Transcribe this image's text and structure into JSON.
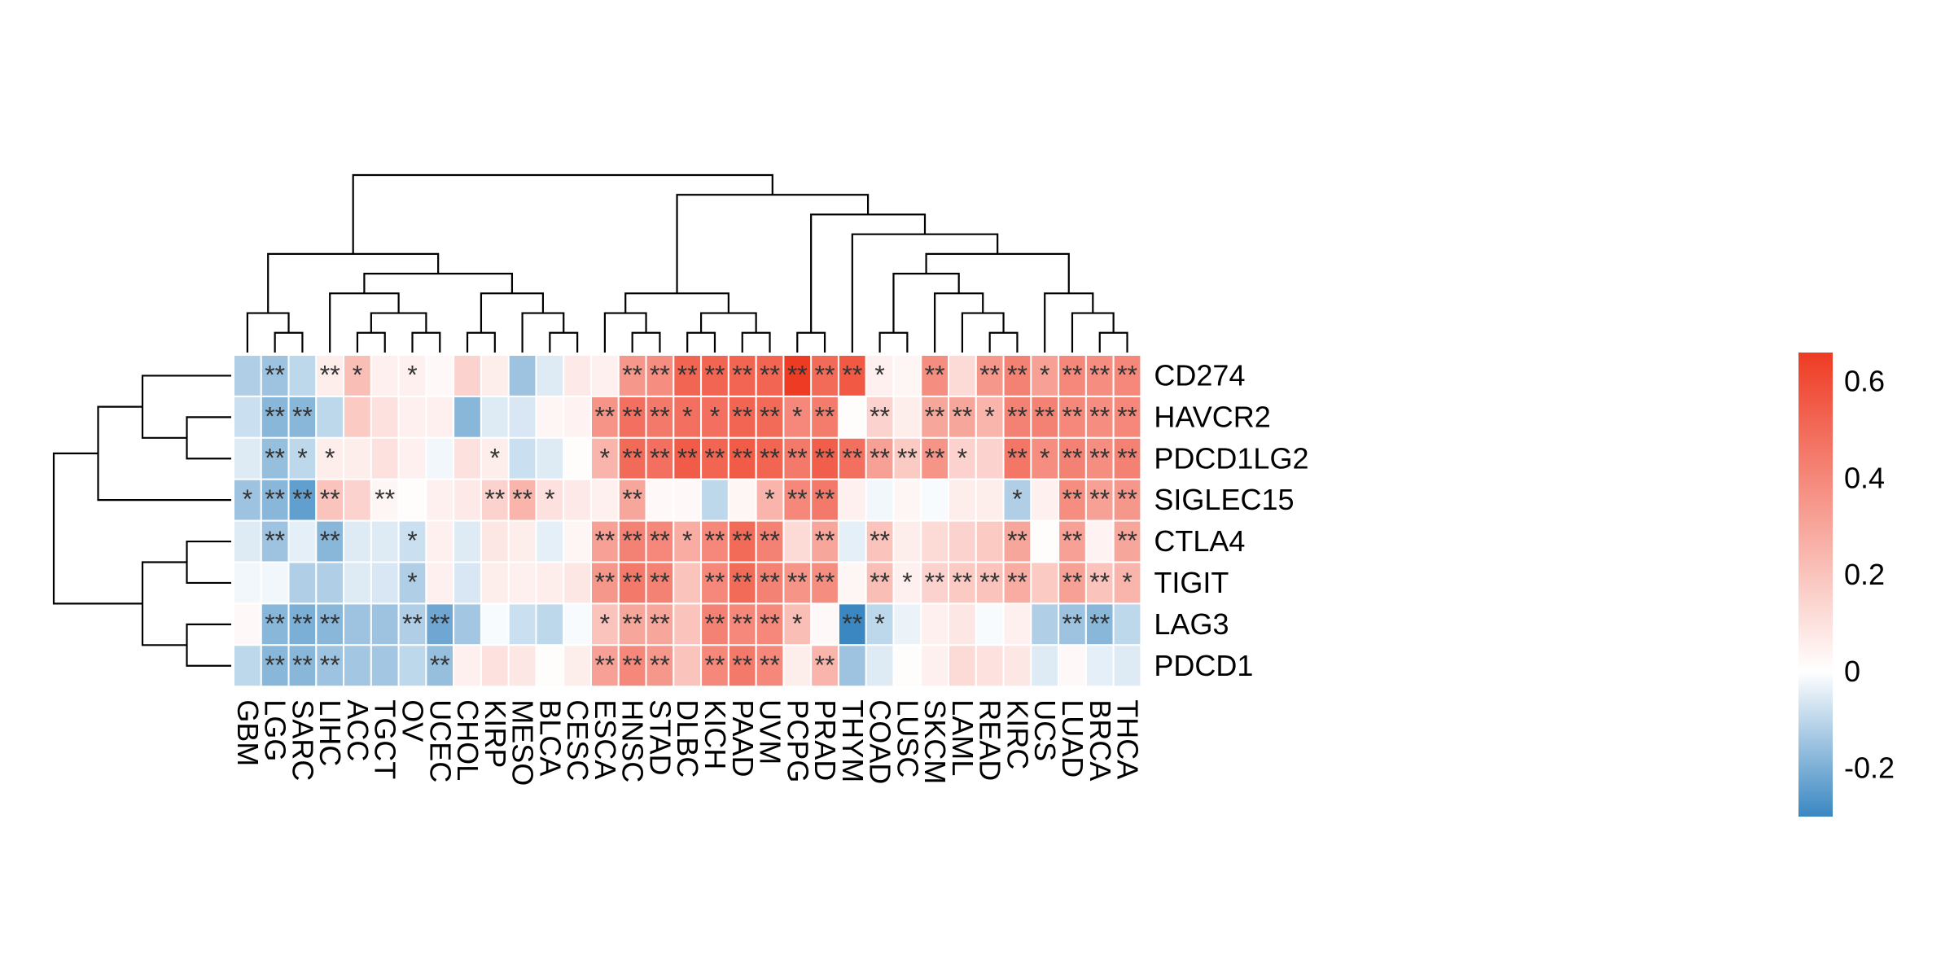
{
  "chart_data": {
    "type": "heatmap",
    "title": "",
    "rows": [
      "CD274",
      "HAVCR2",
      "PDCD1LG2",
      "SIGLEC15",
      "CTLA4",
      "TIGIT",
      "LAG3",
      "PDCD1"
    ],
    "columns": [
      "GBM",
      "LGG",
      "SARC",
      "LIHC",
      "ACC",
      "TGCT",
      "OV",
      "UCEC",
      "CHOL",
      "KIRP",
      "MESO",
      "BLCA",
      "CESC",
      "ESCA",
      "HNSC",
      "STAD",
      "DLBC",
      "KICH",
      "PAAD",
      "UVM",
      "PCPG",
      "PRAD",
      "THYM",
      "COAD",
      "LUSC",
      "SKCM",
      "LAML",
      "READ",
      "KIRC",
      "UCS",
      "LUAD",
      "BRCA",
      "THCA"
    ],
    "values": [
      [
        -0.12,
        -0.15,
        -0.1,
        0.06,
        0.22,
        0.05,
        0.05,
        0.02,
        0.15,
        0.06,
        -0.15,
        -0.05,
        0.07,
        0.05,
        0.35,
        0.38,
        0.52,
        0.52,
        0.52,
        0.52,
        0.66,
        0.5,
        0.56,
        0.05,
        0.03,
        0.38,
        0.12,
        0.35,
        0.42,
        0.32,
        0.4,
        0.38,
        0.4
      ],
      [
        -0.08,
        -0.18,
        -0.18,
        -0.1,
        0.18,
        0.1,
        0.05,
        0.05,
        -0.18,
        -0.05,
        -0.06,
        0.03,
        0.04,
        0.36,
        0.48,
        0.45,
        0.48,
        0.48,
        0.52,
        0.5,
        0.4,
        0.44,
        0.01,
        0.15,
        0.06,
        0.3,
        0.3,
        0.25,
        0.42,
        0.42,
        0.4,
        0.38,
        0.4
      ],
      [
        -0.05,
        -0.16,
        -0.1,
        0.06,
        0.06,
        0.1,
        0.05,
        -0.02,
        0.1,
        0.06,
        -0.08,
        -0.05,
        0.01,
        0.25,
        0.5,
        0.48,
        0.55,
        0.52,
        0.55,
        0.52,
        0.45,
        0.54,
        0.48,
        0.32,
        0.18,
        0.36,
        0.15,
        0.15,
        0.46,
        0.38,
        0.42,
        0.38,
        0.42
      ],
      [
        -0.15,
        -0.18,
        -0.24,
        0.2,
        0.15,
        0.03,
        0.01,
        0.05,
        0.07,
        0.15,
        0.25,
        0.1,
        0.07,
        0.05,
        0.3,
        0.02,
        0.02,
        -0.1,
        0.03,
        0.25,
        0.4,
        0.45,
        0.05,
        -0.02,
        0.03,
        -0.01,
        0.06,
        0.06,
        -0.12,
        0.05,
        0.38,
        0.32,
        0.35
      ],
      [
        -0.05,
        -0.15,
        -0.04,
        -0.18,
        -0.05,
        -0.05,
        -0.08,
        0.05,
        -0.05,
        0.08,
        0.06,
        -0.04,
        0.03,
        0.32,
        0.42,
        0.4,
        0.28,
        0.4,
        0.5,
        0.42,
        0.12,
        0.3,
        -0.04,
        0.2,
        0.06,
        0.12,
        0.15,
        0.18,
        0.3,
        0.01,
        0.32,
        0.04,
        0.3
      ],
      [
        -0.02,
        -0.02,
        -0.12,
        -0.12,
        -0.05,
        -0.06,
        -0.12,
        0.05,
        -0.06,
        0.06,
        0.05,
        0.06,
        0.08,
        0.35,
        0.45,
        0.42,
        0.2,
        0.4,
        0.5,
        0.42,
        0.36,
        0.38,
        0.03,
        0.22,
        0.05,
        0.15,
        0.18,
        0.2,
        0.28,
        0.18,
        0.32,
        0.2,
        0.25
      ],
      [
        0.02,
        -0.18,
        -0.2,
        -0.18,
        -0.15,
        -0.15,
        -0.12,
        -0.22,
        -0.14,
        -0.01,
        -0.08,
        -0.1,
        -0.01,
        0.2,
        0.3,
        0.3,
        0.2,
        0.42,
        0.4,
        0.4,
        0.22,
        0.02,
        -0.3,
        -0.1,
        -0.03,
        0.05,
        0.08,
        -0.01,
        0.05,
        -0.12,
        -0.15,
        -0.18,
        -0.1
      ],
      [
        -0.1,
        -0.18,
        -0.18,
        -0.15,
        -0.14,
        -0.14,
        -0.1,
        -0.16,
        0.05,
        0.1,
        0.08,
        0.01,
        0.06,
        0.32,
        0.4,
        0.35,
        0.2,
        0.4,
        0.45,
        0.4,
        0.06,
        0.25,
        -0.15,
        -0.05,
        0.01,
        0.05,
        0.12,
        0.1,
        0.08,
        -0.05,
        0.02,
        -0.04,
        -0.05
      ]
    ],
    "significance": [
      [
        "",
        "**",
        "",
        "**",
        "*",
        "",
        "*",
        "",
        "",
        "",
        "",
        "",
        "",
        "",
        "**",
        "**",
        "**",
        "**",
        "**",
        "**",
        "**",
        "**",
        "**",
        "*",
        "",
        "**",
        "",
        "**",
        "**",
        "*",
        "**",
        "**",
        "**"
      ],
      [
        "",
        "**",
        "**",
        "",
        "",
        "",
        "",
        "",
        "",
        "",
        "",
        "",
        "",
        "**",
        "**",
        "**",
        "*",
        "*",
        "**",
        "**",
        "*",
        "**",
        "",
        "**",
        "",
        "**",
        "**",
        "*",
        "**",
        "**",
        "**",
        "**",
        "**"
      ],
      [
        "",
        "**",
        "*",
        "*",
        "",
        "",
        "",
        "",
        "",
        "*",
        "",
        "",
        "",
        "*",
        "**",
        "**",
        "**",
        "**",
        "**",
        "**",
        "**",
        "**",
        "**",
        "**",
        "**",
        "**",
        "*",
        "",
        "**",
        "*",
        "**",
        "**",
        "**"
      ],
      [
        "*",
        "**",
        "**",
        "**",
        "",
        "**",
        "",
        "",
        "",
        "**",
        "**",
        "*",
        "",
        "",
        "**",
        "",
        "",
        "",
        "",
        "*",
        "**",
        "**",
        "",
        "",
        "",
        "",
        "",
        "",
        "*",
        "",
        "**",
        "**",
        "**"
      ],
      [
        "",
        "**",
        "",
        "**",
        "",
        "",
        "*",
        "",
        "",
        "",
        "",
        "",
        "",
        "**",
        "**",
        "**",
        "*",
        "**",
        "**",
        "**",
        "",
        "**",
        "",
        "**",
        "",
        "",
        "",
        "",
        "**",
        "",
        "**",
        "",
        "**"
      ],
      [
        "",
        "",
        "",
        "",
        "",
        "",
        "*",
        "",
        "",
        "",
        "",
        "",
        "",
        "**",
        "**",
        "**",
        "",
        "**",
        "**",
        "**",
        "**",
        "**",
        "",
        "**",
        "*",
        "**",
        "**",
        "**",
        "**",
        "",
        "**",
        "**",
        "*"
      ],
      [
        "",
        "**",
        "**",
        "**",
        "",
        "",
        "**",
        "**",
        "",
        "",
        "",
        "",
        "",
        "*",
        "**",
        "**",
        "",
        "**",
        "**",
        "**",
        "*",
        "",
        "**",
        "*",
        "",
        "",
        "",
        "",
        "",
        "",
        "**",
        "**",
        ""
      ],
      [
        "",
        "**",
        "**",
        "**",
        "",
        "",
        "",
        "**",
        "",
        "",
        "",
        "",
        "",
        "**",
        "**",
        "**",
        "",
        "**",
        "**",
        "**",
        "",
        "**",
        "",
        "",
        "",
        "",
        "",
        "",
        "",
        "",
        "",
        "",
        ""
      ]
    ],
    "color_scale": {
      "min": -0.3,
      "max": 0.66,
      "low_color": "#3a87c2",
      "mid_color": "#ffffff",
      "high_color": "#ee3b24",
      "ticks": [
        -0.2,
        0,
        0.2,
        0.4,
        0.6
      ],
      "tick_labels": [
        "-0.2",
        "0",
        "0.2",
        "0.4",
        "0.6"
      ]
    },
    "row_dendrogram": [
      [
        "lag3_pdcd1",
        6,
        7
      ],
      [
        "ctla4_tigit",
        4,
        5
      ],
      [
        "lower",
        "ctla4_tigit",
        "lag3_pdcd1"
      ],
      [
        "havcr2_pdcd1lg2",
        1,
        2
      ],
      [
        "upper",
        0,
        "havcr2_pdcd1lg2"
      ],
      [
        "upper_sig",
        "upper",
        3
      ],
      [
        "root",
        "upper_sig",
        "lower"
      ]
    ],
    "column_dendrogram": [
      [
        "lgg_sarc",
        1,
        2
      ],
      [
        "gbm_grp",
        0,
        "lgg_sarc"
      ],
      [
        "acc_tgct",
        4,
        5
      ],
      [
        "ov_ucec",
        6,
        7
      ],
      [
        "acc_ov",
        "acc_tgct",
        "ov_ucec"
      ],
      [
        "lihc_grp",
        3,
        "acc_ov"
      ],
      [
        "chol_kirp",
        8,
        9
      ],
      [
        "blca_cesc",
        11,
        12
      ],
      [
        "meso_grp",
        10,
        "blca_cesc"
      ],
      [
        "chol_meso",
        "chol_kirp",
        "meso_grp"
      ],
      [
        "lihc_chol",
        "lihc_grp",
        "chol_meso"
      ],
      [
        "left_cluster",
        "gbm_grp",
        "lihc_chol"
      ],
      [
        "hnsc_stad",
        14,
        15
      ],
      [
        "esca_grp",
        13,
        "hnsc_stad"
      ],
      [
        "dlbc_kich",
        16,
        17
      ],
      [
        "paad_uvm",
        18,
        19
      ],
      [
        "dlbc_uvm",
        "dlbc_kich",
        "paad_uvm"
      ],
      [
        "esca_uvm",
        "esca_grp",
        "dlbc_uvm"
      ],
      [
        "pcpg_prad",
        20,
        21
      ],
      [
        "coad_lusc",
        23,
        24
      ],
      [
        "read_kirc",
        27,
        28
      ],
      [
        "laml_grp",
        26,
        "read_kirc"
      ],
      [
        "skcm_grp",
        25,
        "laml_grp"
      ],
      [
        "coad_skcm",
        "coad_lusc",
        "skcm_grp"
      ],
      [
        "brca_thca",
        31,
        32
      ],
      [
        "luad_grp",
        30,
        "brca_thca"
      ],
      [
        "ucs_grp",
        29,
        "luad_grp"
      ],
      [
        "coad_thca",
        "coad_skcm",
        "ucs_grp"
      ],
      [
        "thym_grp",
        22,
        "coad_thca"
      ],
      [
        "pcpg_thca",
        "pcpg_prad",
        "thym_grp"
      ],
      [
        "right_cluster",
        "esca_uvm",
        "pcpg_thca"
      ],
      [
        "root",
        "left_cluster",
        "right_cluster"
      ]
    ]
  }
}
